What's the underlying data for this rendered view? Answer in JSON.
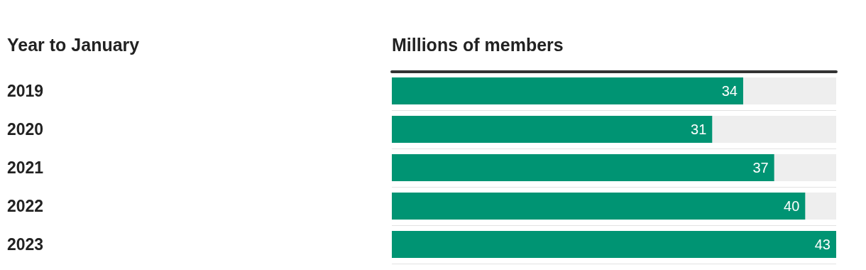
{
  "chart_data": {
    "type": "bar",
    "orientation": "horizontal",
    "ylabel": "Year to January",
    "xlabel": "Millions of members",
    "categories": [
      "2019",
      "2020",
      "2021",
      "2022",
      "2023"
    ],
    "values": [
      34,
      31,
      37,
      40,
      43
    ],
    "color": "#009473",
    "data_labels": true,
    "grid": "y",
    "tick_labels": "y"
  }
}
